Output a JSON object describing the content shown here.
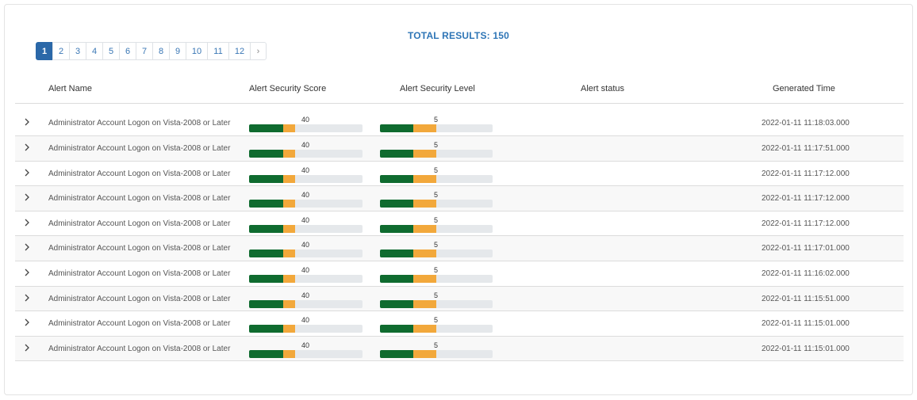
{
  "summary": {
    "total_results": "TOTAL RESULTS: 150"
  },
  "pagination": {
    "pages": [
      "1",
      "2",
      "3",
      "4",
      "5",
      "6",
      "7",
      "8",
      "9",
      "10",
      "11",
      "12"
    ],
    "active": "1",
    "next": "›"
  },
  "table": {
    "headers": {
      "name": "Alert Name",
      "score": "Alert Security Score",
      "level": "Alert Security Level",
      "status": "Alert status",
      "time": "Generated Time"
    },
    "rows": [
      {
        "name": "Administrator Account Logon on Vista-2008 or Later",
        "score": "40",
        "level": "5",
        "status": "",
        "time": "2022-01-11 11:18:03.000"
      },
      {
        "name": "Administrator Account Logon on Vista-2008 or Later",
        "score": "40",
        "level": "5",
        "status": "",
        "time": "2022-01-11 11:17:51.000"
      },
      {
        "name": "Administrator Account Logon on Vista-2008 or Later",
        "score": "40",
        "level": "5",
        "status": "",
        "time": "2022-01-11 11:17:12.000"
      },
      {
        "name": "Administrator Account Logon on Vista-2008 or Later",
        "score": "40",
        "level": "5",
        "status": "",
        "time": "2022-01-11 11:17:12.000"
      },
      {
        "name": "Administrator Account Logon on Vista-2008 or Later",
        "score": "40",
        "level": "5",
        "status": "",
        "time": "2022-01-11 11:17:12.000"
      },
      {
        "name": "Administrator Account Logon on Vista-2008 or Later",
        "score": "40",
        "level": "5",
        "status": "",
        "time": "2022-01-11 11:17:01.000"
      },
      {
        "name": "Administrator Account Logon on Vista-2008 or Later",
        "score": "40",
        "level": "5",
        "status": "",
        "time": "2022-01-11 11:16:02.000"
      },
      {
        "name": "Administrator Account Logon on Vista-2008 or Later",
        "score": "40",
        "level": "5",
        "status": "",
        "time": "2022-01-11 11:15:51.000"
      },
      {
        "name": "Administrator Account Logon on Vista-2008 or Later",
        "score": "40",
        "level": "5",
        "status": "",
        "time": "2022-01-11 11:15:01.000"
      },
      {
        "name": "Administrator Account Logon on Vista-2008 or Later",
        "score": "40",
        "level": "5",
        "status": "",
        "time": "2022-01-11 11:15:01.000"
      }
    ]
  },
  "colors": {
    "accent": "#2e75b6",
    "bar_green": "#0f6b2f",
    "bar_orange": "#f2a83b",
    "bar_track": "#e5e8eb"
  },
  "icons": {
    "expand": "chevron-right-icon"
  }
}
